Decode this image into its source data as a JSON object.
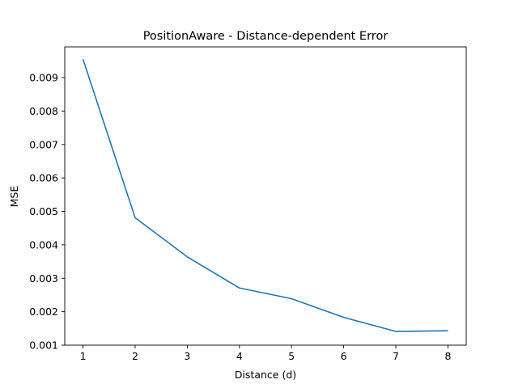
{
  "colors": {
    "line": "#1f77b4",
    "axes": "#000000",
    "background": "#ffffff"
  },
  "chart_data": {
    "type": "line",
    "title": "PositionAware - Distance-dependent Error",
    "xlabel": "Distance (d)",
    "ylabel": "MSE",
    "grid": false,
    "xlim": [
      0.65,
      8.35
    ],
    "ylim": [
      0.001,
      0.00992
    ],
    "xticks": [
      1,
      2,
      3,
      4,
      5,
      6,
      7,
      8
    ],
    "xtick_labels": [
      "1",
      "2",
      "3",
      "4",
      "5",
      "6",
      "7",
      "8"
    ],
    "yticks": [
      0.001,
      0.002,
      0.003,
      0.004,
      0.005,
      0.006,
      0.007,
      0.008,
      0.009
    ],
    "ytick_labels": [
      "0.001",
      "0.002",
      "0.003",
      "0.004",
      "0.005",
      "0.006",
      "0.007",
      "0.008",
      "0.009"
    ],
    "x": [
      1,
      2,
      3,
      4,
      5,
      6,
      7,
      8
    ],
    "series": [
      {
        "values": [
          0.00955,
          0.00481,
          0.00364,
          0.00271,
          0.00239,
          0.00183,
          0.00141,
          0.00143
        ]
      }
    ]
  }
}
